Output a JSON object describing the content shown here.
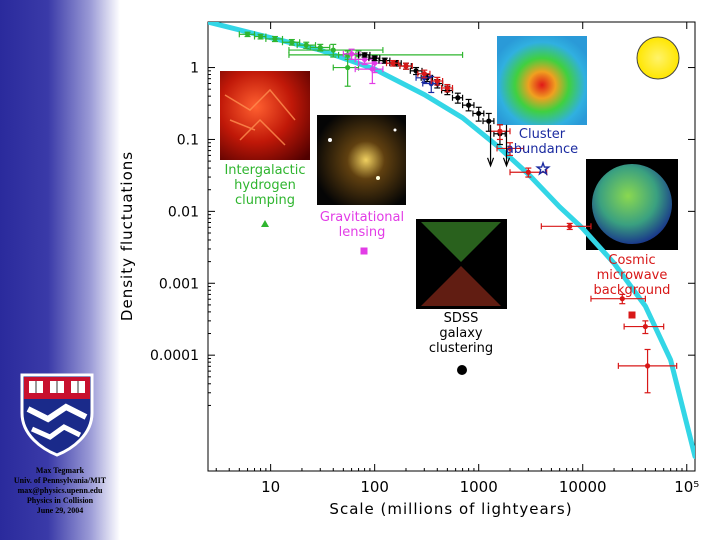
{
  "credits": {
    "author": "Max Tegmark",
    "affiliation": "Univ. of Pennsylvania/MIT",
    "email": "max@physics.upenn.edu",
    "event": "Physics in Collision",
    "date": "June 29, 2004"
  },
  "colors": {
    "model_curve": "#33d6e6",
    "lyman_alpha": "#2fb52f",
    "lensing": "#e23ce6",
    "sdss": "#000000",
    "cluster": "#1a2aa0",
    "cmb": "#d81818",
    "sun": "#ffee00"
  },
  "chart_data": {
    "type": "line",
    "xlabel": "Scale (millions of lightyears)",
    "ylabel": "Density fluctuations",
    "x_scale": "log",
    "y_scale": "log",
    "xlim": [
      2.5,
      120000
    ],
    "ylim": [
      2.45e-06,
      4.3
    ],
    "x_ticks": [
      {
        "value": 10,
        "label": "10"
      },
      {
        "value": 100,
        "label": "100"
      },
      {
        "value": 1000,
        "label": "1000"
      },
      {
        "value": 10000,
        "label": "10000"
      },
      {
        "value": 100000,
        "label": "10⁵"
      }
    ],
    "y_ticks": [
      {
        "value": 1,
        "label": "1"
      },
      {
        "value": 0.1,
        "label": "0.1"
      },
      {
        "value": 0.01,
        "label": "0.01"
      },
      {
        "value": 0.001,
        "label": "0.001"
      },
      {
        "value": 0.0001,
        "label": "0.0001"
      }
    ],
    "model_curve": {
      "name": "theory",
      "x": [
        2.5,
        10,
        30,
        100,
        300,
        700,
        1500,
        3000,
        6000,
        10000,
        20000,
        40000,
        70000,
        120000
      ],
      "y": [
        4.3,
        2.6,
        1.75,
        0.95,
        0.42,
        0.2,
        0.082,
        0.033,
        0.0115,
        0.0058,
        0.0019,
        0.00048,
        8.6e-05,
        3.9e-06
      ]
    },
    "series": [
      {
        "name": "Intergalactic hydrogen clumping",
        "color_key": "lyman_alpha",
        "points": [
          {
            "x": 6,
            "y": 2.9,
            "xerr": [
              5,
              7
            ],
            "yerr": [
              2.7,
              3.1
            ]
          },
          {
            "x": 8,
            "y": 2.7,
            "xerr": [
              7,
              9
            ],
            "yerr": [
              2.5,
              2.9
            ]
          },
          {
            "x": 11,
            "y": 2.5,
            "xerr": [
              9,
              13
            ],
            "yerr": [
              2.3,
              2.7
            ]
          },
          {
            "x": 16,
            "y": 2.25,
            "xerr": [
              13,
              19
            ],
            "yerr": [
              2.05,
              2.45
            ]
          },
          {
            "x": 22,
            "y": 2.05,
            "xerr": [
              18,
              27
            ],
            "yerr": [
              1.85,
              2.25
            ]
          },
          {
            "x": 30,
            "y": 1.9,
            "xerr": [
              24,
              37
            ],
            "yerr": [
              1.7,
              2.1
            ]
          },
          {
            "x": 40,
            "y": 1.75,
            "xerr": [
              15,
              120
            ],
            "yerr": [
              1.4,
              2.1
            ]
          },
          {
            "x": 55,
            "y": 1.5,
            "xerr": [
              45,
              66
            ],
            "yerr": [
              1.3,
              1.7
            ]
          },
          {
            "x": 70,
            "y": 1.5,
            "xerr": [
              15,
              700
            ],
            "yerr": [
              1.3,
              1.7
            ]
          },
          {
            "x": 55,
            "y": 1.0,
            "xerr": [
              40,
              70
            ],
            "yerr": [
              0.55,
              1.4
            ]
          }
        ]
      },
      {
        "name": "Gravitational lensing",
        "color_key": "lensing",
        "points": [
          {
            "x": 60,
            "y": 1.55,
            "xerr": [
              50,
              72
            ],
            "yerr": [
              1.3,
              1.8
            ]
          },
          {
            "x": 80,
            "y": 1.3,
            "xerr": [
              65,
              95
            ],
            "yerr": [
              1.1,
              1.5
            ]
          },
          {
            "x": 100,
            "y": 1.15,
            "xerr": [
              70,
              140
            ],
            "yerr": [
              0.85,
              1.4
            ]
          },
          {
            "x": 95,
            "y": 0.95,
            "xerr": [
              65,
              120
            ],
            "yerr": [
              0.6,
              1.3
            ]
          }
        ]
      },
      {
        "name": "SDSS galaxy clustering",
        "color_key": "sdss",
        "points": [
          {
            "x": 80,
            "y": 1.5,
            "xerr": [
              70,
              90
            ],
            "yerr": [
              1.4,
              1.6
            ]
          },
          {
            "x": 100,
            "y": 1.35,
            "xerr": [
              88,
              112
            ],
            "yerr": [
              1.25,
              1.45
            ]
          },
          {
            "x": 125,
            "y": 1.25,
            "xerr": [
              110,
              140
            ],
            "yerr": [
              1.15,
              1.35
            ]
          },
          {
            "x": 160,
            "y": 1.15,
            "xerr": [
              140,
              180
            ],
            "yerr": [
              1.05,
              1.25
            ]
          },
          {
            "x": 200,
            "y": 1.05,
            "xerr": [
              175,
              225
            ],
            "yerr": [
              0.95,
              1.15
            ]
          },
          {
            "x": 250,
            "y": 0.9,
            "xerr": [
              220,
              285
            ],
            "yerr": [
              0.8,
              1.0
            ]
          },
          {
            "x": 320,
            "y": 0.72,
            "xerr": [
              280,
              360
            ],
            "yerr": [
              0.64,
              0.8
            ]
          },
          {
            "x": 400,
            "y": 0.6,
            "xerr": [
              350,
              450
            ],
            "yerr": [
              0.52,
              0.68
            ]
          },
          {
            "x": 500,
            "y": 0.48,
            "xerr": [
              440,
              560
            ],
            "yerr": [
              0.42,
              0.55
            ]
          },
          {
            "x": 630,
            "y": 0.38,
            "xerr": [
              560,
              700
            ],
            "yerr": [
              0.32,
              0.44
            ]
          },
          {
            "x": 800,
            "y": 0.3,
            "xerr": [
              700,
              900
            ],
            "yerr": [
              0.25,
              0.36
            ]
          },
          {
            "x": 1000,
            "y": 0.23,
            "xerr": [
              880,
              1120
            ],
            "yerr": [
              0.18,
              0.28
            ]
          },
          {
            "x": 1250,
            "y": 0.18,
            "xerr": [
              1100,
              1400
            ],
            "yerr": [
              0.13,
              0.23
            ]
          },
          {
            "x": 1600,
            "y": 0.12,
            "xerr": [
              1400,
              1800
            ],
            "yerr": [
              0.085,
              0.16
            ]
          }
        ]
      },
      {
        "name": "Cluster abundance",
        "color_key": "cluster",
        "points": [
          {
            "x": 300,
            "y": 0.72,
            "xerr": [
              250,
              350
            ],
            "yerr": [
              0.62,
              0.82
            ]
          },
          {
            "x": 350,
            "y": 0.6,
            "xerr": [
              290,
              410
            ],
            "yerr": [
              0.45,
              0.75
            ]
          }
        ]
      },
      {
        "name": "Cosmic microwave background",
        "color_key": "cmb",
        "points": [
          {
            "x": 150,
            "y": 1.15,
            "xerr": [
              130,
              170
            ],
            "yerr": [
              1.05,
              1.25
            ]
          },
          {
            "x": 200,
            "y": 1.05,
            "xerr": [
              175,
              230
            ],
            "yerr": [
              0.95,
              1.15
            ]
          },
          {
            "x": 300,
            "y": 0.82,
            "xerr": [
              260,
              340
            ],
            "yerr": [
              0.72,
              0.92
            ]
          },
          {
            "x": 400,
            "y": 0.65,
            "xerr": [
              350,
              450
            ],
            "yerr": [
              0.57,
              0.73
            ]
          },
          {
            "x": 500,
            "y": 0.52,
            "xerr": [
              440,
              560
            ],
            "yerr": [
              0.46,
              0.58
            ]
          },
          {
            "x": 1600,
            "y": 0.13,
            "xerr": [
              1300,
              2000
            ],
            "yerr": [
              0.1,
              0.16
            ]
          },
          {
            "x": 2000,
            "y": 0.075,
            "xerr": [
              1500,
              2700
            ],
            "yerr": [
              0.06,
              0.09
            ]
          },
          {
            "x": 3000,
            "y": 0.035,
            "xerr": [
              2000,
              4500
            ],
            "yerr": [
              0.03,
              0.04
            ]
          },
          {
            "x": 7500,
            "y": 0.0062,
            "xerr": [
              4000,
              12000
            ],
            "yerr": [
              0.0056,
              0.0068
            ]
          },
          {
            "x": 24000,
            "y": 0.00061,
            "xerr": [
              12000,
              40000
            ],
            "yerr": [
              0.00052,
              0.0007
            ]
          },
          {
            "x": 40000,
            "y": 0.00025,
            "xerr": [
              25000,
              60000
            ],
            "yerr": [
              0.0002,
              0.0003
            ]
          },
          {
            "x": 42000,
            "y": 7.1e-05,
            "xerr": [
              22000,
              80000
            ],
            "yerr": [
              3e-05,
              0.00012
            ]
          }
        ]
      }
    ],
    "upper_limits": [
      {
        "x": 1300,
        "y": 0.16
      },
      {
        "x": 1850,
        "y": 0.16
      }
    ],
    "probe_labels": [
      {
        "name": "hydrogen",
        "lines": [
          "Intergalactic",
          "hydrogen",
          "clumping"
        ],
        "color_key": "lyman_alpha",
        "marker": "triangle"
      },
      {
        "name": "lensing",
        "lines": [
          "Gravitational",
          "lensing"
        ],
        "color_key": "lensing",
        "marker": "square"
      },
      {
        "name": "sdss",
        "lines": [
          "SDSS",
          "galaxy",
          "clustering"
        ],
        "color_key": "sdss",
        "marker": "circle"
      },
      {
        "name": "cluster",
        "lines": [
          "Cluster",
          "abundance"
        ],
        "color_key": "cluster",
        "marker": "star"
      },
      {
        "name": "cmb",
        "lines": [
          "Cosmic",
          "microwave",
          "background"
        ],
        "color_key": "cmb",
        "marker": "square"
      }
    ]
  }
}
